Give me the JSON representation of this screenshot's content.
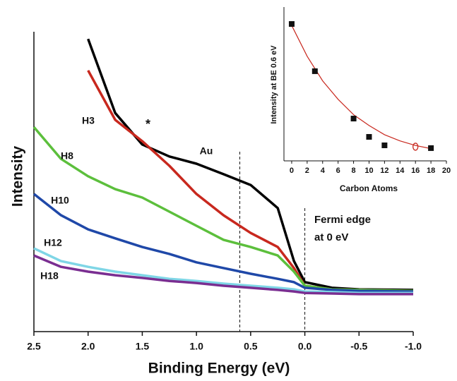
{
  "chart_data": [
    {
      "type": "line",
      "xlabel": "Binding Energy (eV)",
      "ylabel": "Intensity",
      "x": [
        2.5,
        2.25,
        2.0,
        1.75,
        1.5,
        1.25,
        1.0,
        0.75,
        0.5,
        0.25,
        0.1,
        0.0,
        -0.25,
        -0.5,
        -1.0
      ],
      "xlim": [
        2.5,
        -1.0
      ],
      "xticks": [
        2.5,
        {
          "value": 2,
          "label": "2.0"
        },
        1.5,
        {
          "value": 1,
          "label": "1.0"
        },
        0.5,
        {
          "value": 0,
          "label": "0.0"
        },
        -0.5,
        {
          "value": -1,
          "label": "-1.0"
        }
      ],
      "ylim": [
        0,
        100
      ],
      "series": [
        {
          "name": "Au",
          "color": "#000000",
          "values": [
            null,
            null,
            97.6,
            72.9,
            62.4,
            58.4,
            56.0,
            52.5,
            48.9,
            41.2,
            23.5,
            16.5,
            14.6,
            14.1,
            13.9
          ]
        },
        {
          "name": "H3",
          "color": "#c8281e",
          "values": [
            null,
            null,
            87.1,
            70.6,
            63.5,
            55.3,
            45.9,
            38.8,
            32.9,
            28.2,
            21.2,
            15.3,
            14.1,
            13.9,
            13.6
          ]
        },
        {
          "name": "H8",
          "color": "#5cbf3c",
          "values": [
            68.2,
            57.6,
            51.8,
            47.5,
            44.7,
            40.0,
            35.3,
            30.6,
            28.2,
            25.4,
            20.0,
            15.3,
            14.1,
            13.9,
            13.6
          ]
        },
        {
          "name": "H10",
          "color": "#1f48a8",
          "values": [
            45.9,
            38.8,
            34.1,
            31.1,
            28.2,
            25.9,
            23.1,
            21.2,
            19.3,
            17.6,
            16.5,
            14.6,
            13.9,
            13.6,
            13.4
          ]
        },
        {
          "name": "H12",
          "color": "#7fd6e6",
          "values": [
            27.8,
            23.5,
            21.6,
            20.0,
            18.8,
            17.6,
            16.9,
            16.0,
            15.3,
            14.6,
            14.1,
            13.4,
            13.2,
            12.9,
            12.9
          ]
        },
        {
          "name": "H18",
          "color": "#7a2e91",
          "values": [
            25.4,
            21.6,
            20.0,
            18.8,
            17.9,
            16.9,
            16.2,
            15.3,
            14.6,
            13.9,
            13.4,
            12.9,
            12.7,
            12.5,
            12.5
          ]
        }
      ],
      "vlines": [
        0.6,
        0.0
      ],
      "annotations": [
        "*",
        "Fermi edge",
        "at 0 eV"
      ]
    },
    {
      "type": "scatter",
      "xlabel": "Carbon Atoms",
      "ylabel": "Intensity at BE 0.6 eV",
      "x": [
        0,
        3,
        8,
        10,
        12,
        18
      ],
      "values": [
        89.0,
        58.3,
        27.5,
        15.6,
        10.1,
        8.3
      ],
      "color": "#111111",
      "open_point": {
        "x": 16,
        "value": 9.2,
        "color": "#c8281e"
      },
      "fit": {
        "x": [
          0,
          2,
          4,
          6,
          8,
          10,
          12,
          14,
          16,
          18
        ],
        "values": [
          88,
          68,
          52,
          40,
          30,
          23,
          17,
          13,
          10,
          8
        ],
        "color": "#c8281e"
      },
      "xlim": [
        -1,
        20
      ],
      "xticks": [
        0,
        2,
        4,
        6,
        8,
        10,
        12,
        14,
        16,
        18,
        20
      ],
      "ylim": [
        0,
        100
      ]
    }
  ]
}
